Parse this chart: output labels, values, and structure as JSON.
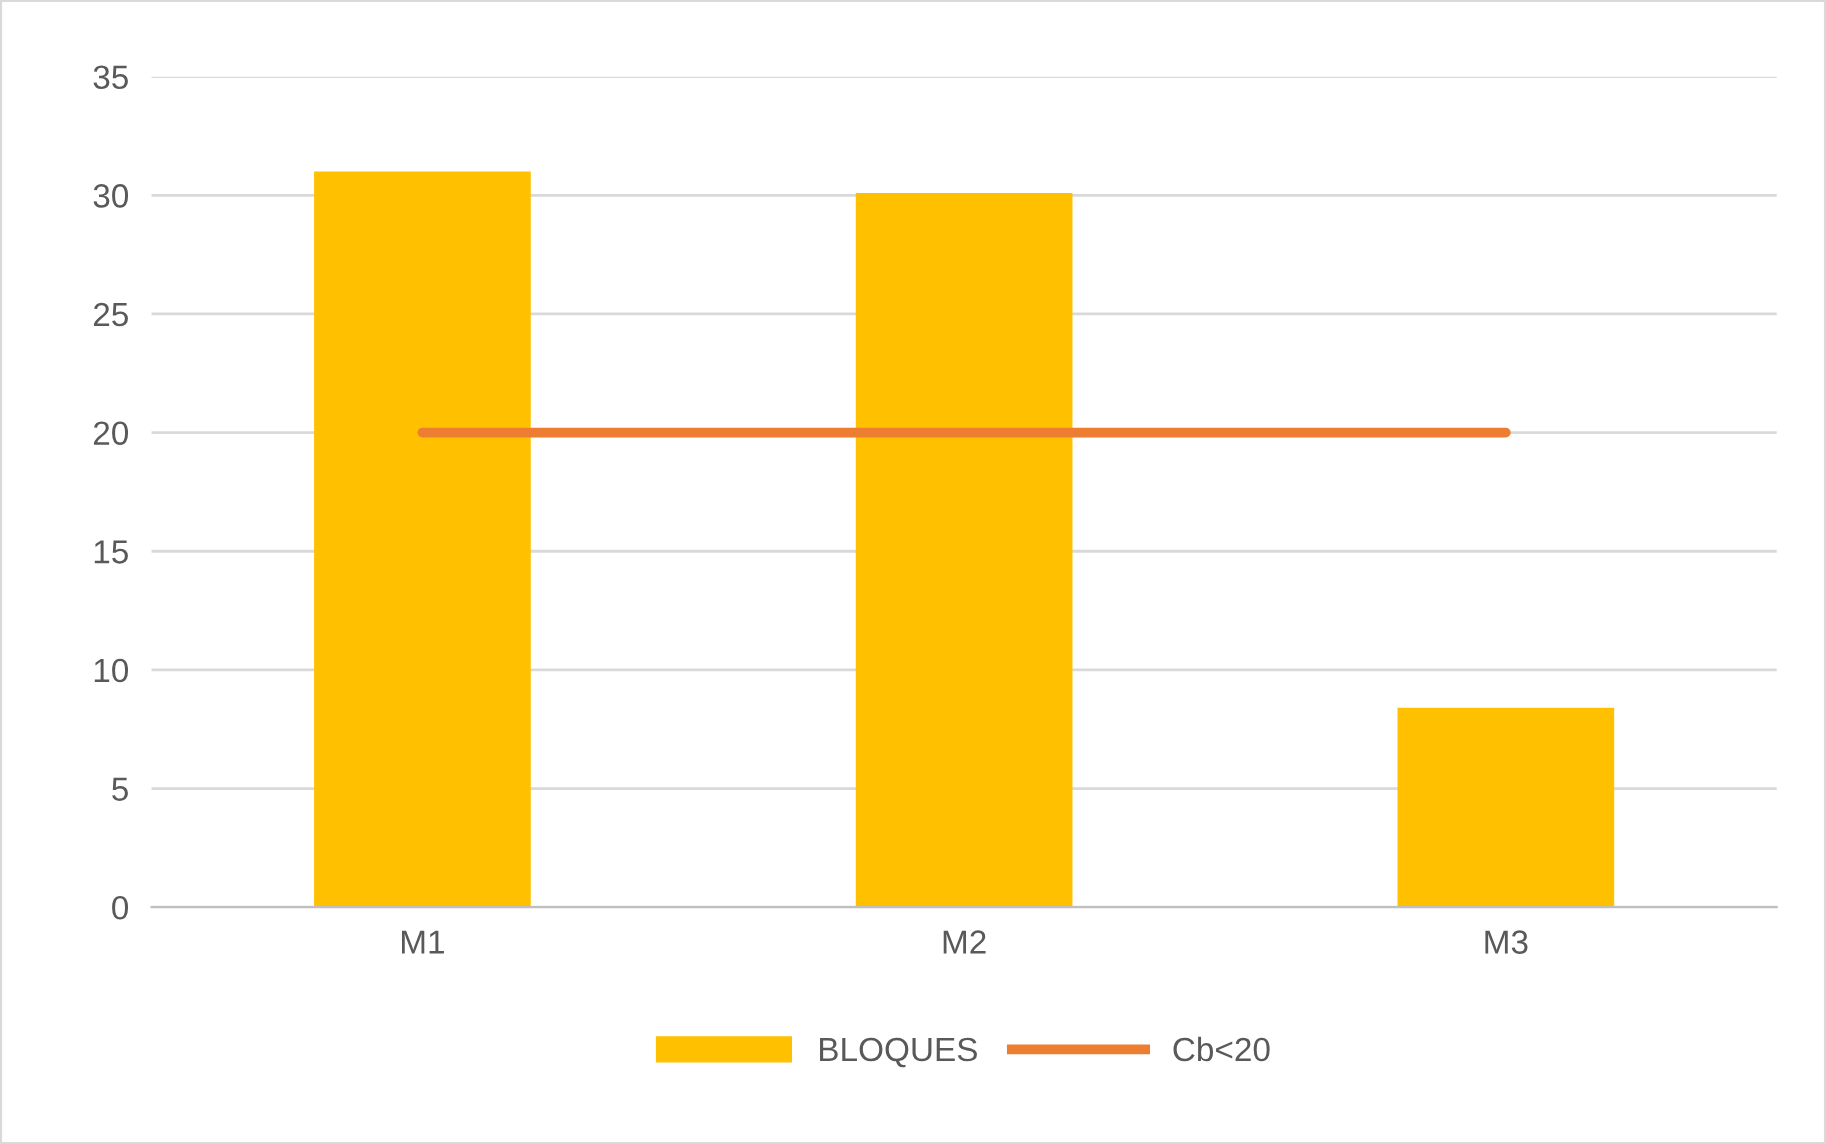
{
  "chart_data": {
    "type": "bar",
    "categories": [
      "M1",
      "M2",
      "M3"
    ],
    "series": [
      {
        "name": "BLOQUES",
        "color": "#ffc000",
        "values": [
          31,
          30.1,
          8.4
        ]
      },
      {
        "name": "Cb<20",
        "type": "line",
        "color": "#ed7d31",
        "values": [
          20,
          20,
          20
        ]
      }
    ],
    "ylim": [
      0,
      35
    ],
    "yticks": [
      0,
      5,
      10,
      15,
      20,
      25,
      30,
      35
    ],
    "grid": "y",
    "legend": "bottom"
  }
}
